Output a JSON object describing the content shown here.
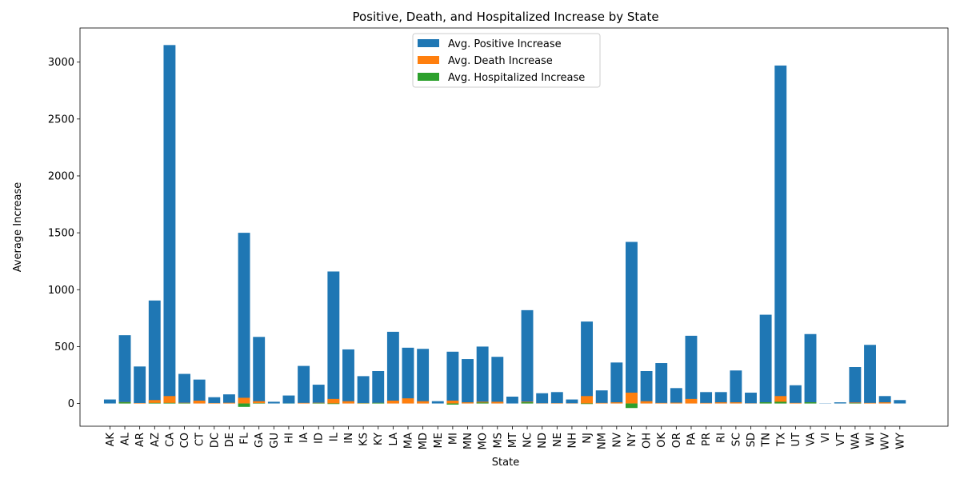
{
  "chart_data": {
    "type": "bar",
    "title": "Positive, Death, and Hospitalized Increase by State",
    "xlabel": "State",
    "ylabel": "Average Increase",
    "ylim": [
      -200,
      3300
    ],
    "yticks": [
      0,
      500,
      1000,
      1500,
      2000,
      2500,
      3000
    ],
    "grid": false,
    "legend_position": "upper-center",
    "stacking": "overlaid (all series start at 0)",
    "categories": [
      "AK",
      "AL",
      "AR",
      "AZ",
      "CA",
      "CO",
      "CT",
      "DC",
      "DE",
      "FL",
      "GA",
      "GU",
      "HI",
      "IA",
      "ID",
      "IL",
      "IN",
      "KS",
      "KY",
      "LA",
      "MA",
      "MD",
      "ME",
      "MI",
      "MN",
      "MO",
      "MS",
      "MT",
      "NC",
      "ND",
      "NE",
      "NH",
      "NJ",
      "NM",
      "NV",
      "NY",
      "OH",
      "OK",
      "OR",
      "PA",
      "PR",
      "RI",
      "SC",
      "SD",
      "TN",
      "TX",
      "UT",
      "VA",
      "VI",
      "VT",
      "WA",
      "WI",
      "WV",
      "WY"
    ],
    "series": [
      {
        "name": "Avg. Positive Increase",
        "color": "#1f77b4",
        "values": [
          35,
          600,
          325,
          905,
          3150,
          260,
          210,
          55,
          80,
          1500,
          585,
          15,
          70,
          330,
          165,
          1160,
          475,
          240,
          285,
          630,
          490,
          480,
          20,
          455,
          390,
          500,
          410,
          60,
          820,
          90,
          100,
          35,
          720,
          115,
          360,
          1420,
          285,
          355,
          135,
          595,
          100,
          100,
          290,
          95,
          780,
          2970,
          160,
          610,
          2,
          10,
          320,
          515,
          65,
          30
        ]
      },
      {
        "name": "Avg. Death Increase",
        "color": "#ff7f0e",
        "values": [
          0,
          12,
          4,
          30,
          65,
          6,
          25,
          4,
          6,
          50,
          20,
          0,
          0,
          5,
          6,
          40,
          20,
          4,
          5,
          25,
          45,
          20,
          0,
          25,
          10,
          15,
          15,
          0,
          15,
          2,
          3,
          2,
          65,
          5,
          10,
          95,
          20,
          5,
          7,
          40,
          5,
          10,
          10,
          2,
          10,
          65,
          5,
          10,
          0,
          0,
          8,
          5,
          10,
          0
        ]
      },
      {
        "name": "Avg. Hospitalized Increase",
        "color": "#2ca02c",
        "values": [
          0,
          10,
          0,
          5,
          5,
          3,
          0,
          0,
          0,
          -30,
          3,
          0,
          1,
          0,
          3,
          -5,
          0,
          2,
          5,
          0,
          0,
          0,
          0,
          -10,
          0,
          8,
          0,
          0,
          10,
          0,
          0,
          0,
          -5,
          0,
          0,
          -40,
          0,
          0,
          0,
          0,
          0,
          0,
          0,
          0,
          10,
          15,
          0,
          10,
          0,
          0,
          3,
          0,
          0,
          0
        ]
      }
    ]
  }
}
